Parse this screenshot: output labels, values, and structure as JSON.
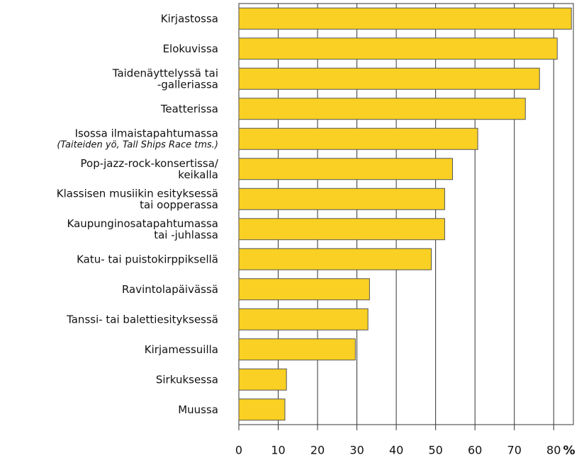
{
  "chart_data": {
    "type": "bar",
    "orientation": "horizontal",
    "categories": [
      "Kirjastossa",
      "Elokuvissa",
      "Taidenäyttelyssä tai\n-galleriassa",
      "Teatterissa",
      "Isossa ilmaistapahtumassa\n(Taiteiden yö, Tall Ships Race tms.)",
      "Pop-jazz-rock-konsertissa/\nkeikalla",
      "Klassisen musiikin esityksessä\ntai oopperassa",
      "Kaupunginosatapahtumassa\ntai -juhlassa",
      "Katu- tai puistokirppiksellä",
      "Ravintolapäivässä",
      "Tanssi- tai balettiesityksessä",
      "Kirjamessuilla",
      "Sirkuksessa",
      "Muussa"
    ],
    "values": [
      84.5,
      80.9,
      76.4,
      72.8,
      60.7,
      54.3,
      52.3,
      52.3,
      48.9,
      33.2,
      32.8,
      29.6,
      12.1,
      11.7
    ],
    "color": "#f9d023",
    "xlim": [
      0,
      85
    ],
    "xticks": [
      0,
      10,
      20,
      30,
      40,
      50,
      60,
      70,
      80
    ],
    "xlabel": "%",
    "grid": true
  }
}
